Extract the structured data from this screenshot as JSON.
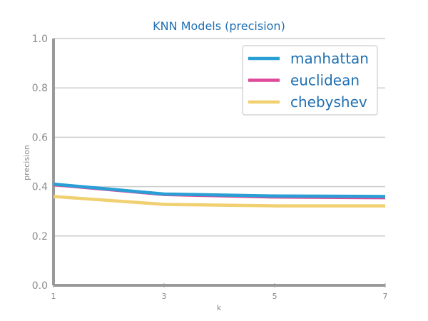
{
  "chart_data": {
    "type": "line",
    "title": "KNN Models (precision)",
    "xlabel": "k",
    "ylabel": "precision",
    "x": [
      1,
      3,
      5,
      7
    ],
    "x_ticks": [
      "1",
      "3",
      "5",
      "7"
    ],
    "y_ticks": [
      "0.0",
      "0.2",
      "0.4",
      "0.6",
      "0.8",
      "1.0"
    ],
    "xlim": [
      1,
      7
    ],
    "ylim": [
      0,
      1
    ],
    "grid": "horizontal",
    "legend_position": "top-right",
    "series": [
      {
        "name": "manhattan",
        "color": "#2a9fd6",
        "values": [
          0.41,
          0.37,
          0.362,
          0.36
        ]
      },
      {
        "name": "euclidean",
        "color": "#e0489a",
        "values": [
          0.408,
          0.368,
          0.358,
          0.355
        ]
      },
      {
        "name": "chebyshev",
        "color": "#f0d070",
        "values": [
          0.36,
          0.328,
          0.322,
          0.322
        ]
      }
    ],
    "colors": {
      "title": "#1f6fb2",
      "legend_text": "#1f6fb2",
      "grid": "#cccccc",
      "axis": "#999999",
      "tick_text": "#8a8a8a"
    }
  }
}
